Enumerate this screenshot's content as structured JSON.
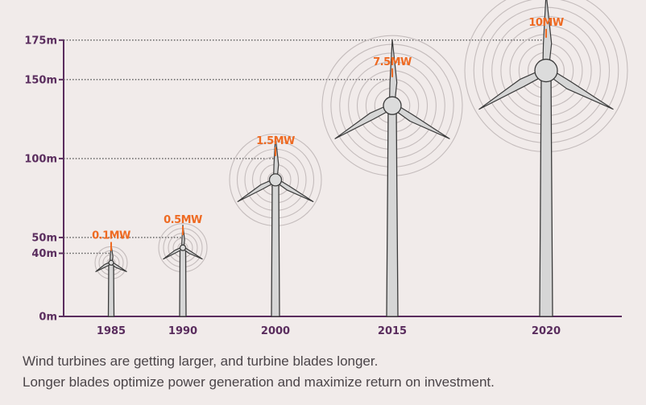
{
  "chart_data": {
    "type": "scatter",
    "title": "",
    "xlabel": "",
    "ylabel": "",
    "y_unit": "m",
    "yticks": [
      {
        "value": 0,
        "label": "0m"
      },
      {
        "value": 40,
        "label": "40m"
      },
      {
        "value": 50,
        "label": "50m"
      },
      {
        "value": 100,
        "label": "100m"
      },
      {
        "value": 150,
        "label": "150m"
      },
      {
        "value": 175,
        "label": "175m"
      }
    ],
    "ylim": [
      0,
      175
    ],
    "categories": [
      "1985",
      "1990",
      "2000",
      "2015",
      "2020"
    ],
    "series": [
      {
        "values": [
          40,
          50,
          100,
          150,
          175
        ],
        "capacity_labels": [
          "0.1MW",
          "0.5MW",
          "1.5MW",
          "7.5MW",
          "10MW"
        ]
      }
    ],
    "grid": false,
    "reference_lines": "dotted horizontal lines from the axis to each turbine tip",
    "colors": {
      "background": "#f1ebea",
      "axis": "#5a2d5e",
      "label_text": "#5a2d5e",
      "capacity_text": "#ee6a22",
      "turbine_fill": "#d6d6d6",
      "turbine_outline": "#3a3a3a"
    }
  },
  "captions": [
    "Wind turbines are getting larger, and turbine blades longer.",
    "Longer blades optimize power generation and maximize return on investment."
  ]
}
